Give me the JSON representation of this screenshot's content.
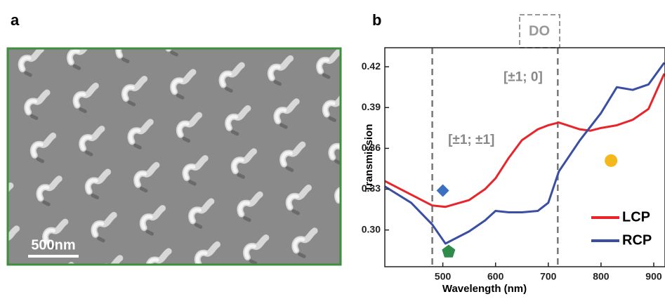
{
  "panel_a": {
    "label": "a",
    "scale_bar": "500nm"
  },
  "chart_data": {
    "type": "line",
    "panel_label": "b",
    "x_label": "Wavelength (nm)",
    "y_label": "Transmission",
    "xlim": [
      390,
      920
    ],
    "ylim": [
      0.273,
      0.434
    ],
    "xticks": [
      500,
      600,
      700,
      800,
      900
    ],
    "yticks": [
      {
        "value": 0.3,
        "label": "0.30"
      },
      0.33,
      0.36,
      0.39,
      0.42
    ],
    "x": [
      390,
      440,
      480,
      505,
      550,
      580,
      600,
      625,
      650,
      680,
      700,
      720,
      760,
      780,
      800,
      830,
      860,
      890,
      920
    ],
    "series": [
      {
        "name": "LCP",
        "color": "#e8252a",
        "values": [
          0.336,
          0.326,
          0.318,
          0.317,
          0.322,
          0.33,
          0.338,
          0.353,
          0.366,
          0.374,
          0.377,
          0.379,
          0.374,
          0.373,
          0.375,
          0.377,
          0.381,
          0.389,
          0.415
        ]
      },
      {
        "name": "RCP",
        "color": "#3a4fa3",
        "values": [
          0.332,
          0.32,
          0.304,
          0.29,
          0.299,
          0.307,
          0.314,
          0.313,
          0.313,
          0.314,
          0.32,
          0.343,
          0.366,
          0.376,
          0.386,
          0.405,
          0.403,
          0.407,
          0.423
        ]
      }
    ],
    "vlines": [
      480,
      718
    ],
    "annotations": [
      {
        "text": "[±1; ±1]",
        "x": 510,
        "y": 0.366
      },
      {
        "text": "[±1; 0]",
        "x": 615,
        "y": 0.412
      }
    ],
    "boxed_label": "DO",
    "markers": [
      {
        "shape": "diamond",
        "color": "#3d6fc0",
        "x": 500,
        "y": 0.329
      },
      {
        "shape": "pentagon",
        "color": "#2e8b4a",
        "x": 511,
        "y": 0.284
      },
      {
        "shape": "circle",
        "color": "#f5b81c",
        "x": 819,
        "y": 0.351
      }
    ]
  }
}
